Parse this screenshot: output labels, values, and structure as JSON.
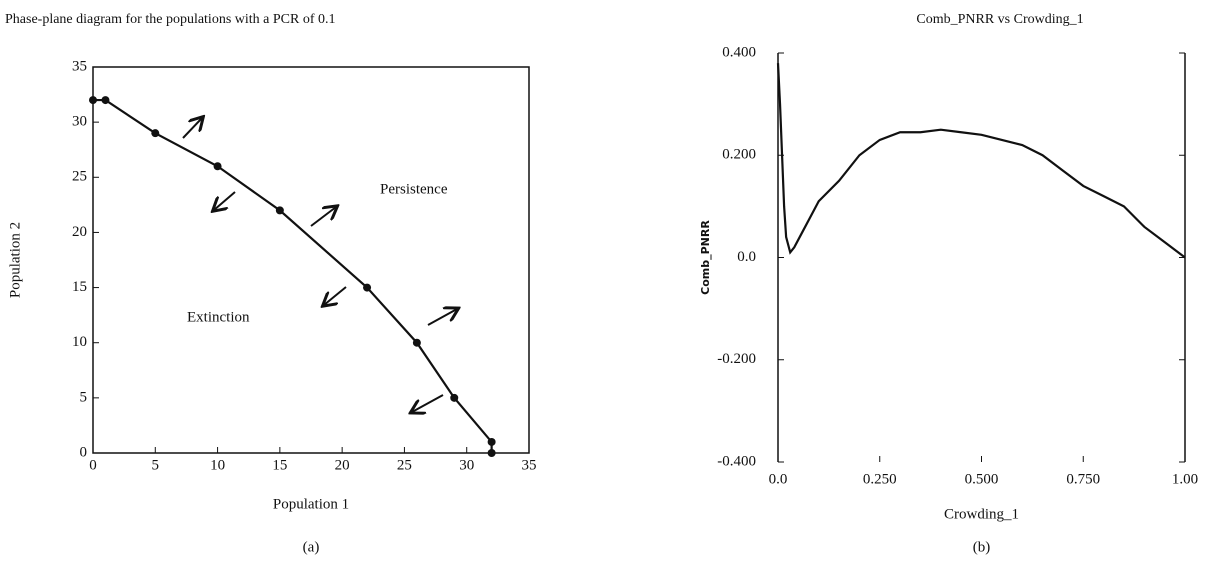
{
  "chart_data": [
    {
      "type": "line",
      "title": "Phase-plane diagram for the populations with a PCR of 0.1",
      "x_label": "Population 1",
      "y_label": "Population 2",
      "caption": "(a)",
      "annotations": [
        "Persistence",
        "Extinction"
      ],
      "markers": true,
      "x": [
        0,
        1,
        5,
        10,
        15,
        22,
        26,
        29,
        32,
        32
      ],
      "series": [
        {
          "color": "#111111",
          "values": [
            32,
            32,
            29,
            26,
            22,
            15,
            10,
            5,
            1,
            0
          ]
        }
      ],
      "xlim": [
        0,
        35
      ],
      "xticks": [
        0,
        5,
        10,
        15,
        20,
        25,
        30,
        35
      ],
      "ylim": [
        0,
        35
      ],
      "yticks": [
        0,
        5,
        10,
        15,
        20,
        25,
        30,
        35
      ]
    },
    {
      "type": "line",
      "title": "Comb_PNRR vs Crowding_1",
      "x_label": "Crowding_1",
      "y_label": "Comb_PNRR",
      "caption": "(b)",
      "markers": false,
      "x": [
        0,
        0.005,
        0.01,
        0.015,
        0.02,
        0.03,
        0.04,
        0.06,
        0.08,
        0.1,
        0.15,
        0.2,
        0.25,
        0.3,
        0.35,
        0.4,
        0.45,
        0.5,
        0.55,
        0.6,
        0.65,
        0.7,
        0.75,
        0.8,
        0.85,
        0.9,
        0.95,
        1.0
      ],
      "series": [
        {
          "color": "#111111",
          "values": [
            0.38,
            0.3,
            0.2,
            0.1,
            0.04,
            0.01,
            0.02,
            0.05,
            0.08,
            0.11,
            0.15,
            0.2,
            0.23,
            0.245,
            0.245,
            0.25,
            0.245,
            0.24,
            0.23,
            0.22,
            0.2,
            0.17,
            0.14,
            0.12,
            0.1,
            0.06,
            0.03,
            0.0
          ]
        }
      ],
      "xlim": [
        0,
        1
      ],
      "xticks": [
        {
          "value": 0,
          "label": "0.0"
        },
        {
          "value": 0.25,
          "label": "0.250"
        },
        {
          "value": 0.5,
          "label": "0.500"
        },
        {
          "value": 0.75,
          "label": "0.750"
        },
        {
          "value": 1,
          "label": "1.00"
        }
      ],
      "ylim": [
        -0.4,
        0.4
      ],
      "yticks": [
        {
          "value": -0.4,
          "label": "-0.400"
        },
        {
          "value": -0.2,
          "label": "-0.200"
        },
        {
          "value": 0,
          "label": "0.0"
        },
        {
          "value": 0.2,
          "label": "0.200"
        },
        {
          "value": 0.4,
          "label": "0.400"
        }
      ]
    }
  ]
}
